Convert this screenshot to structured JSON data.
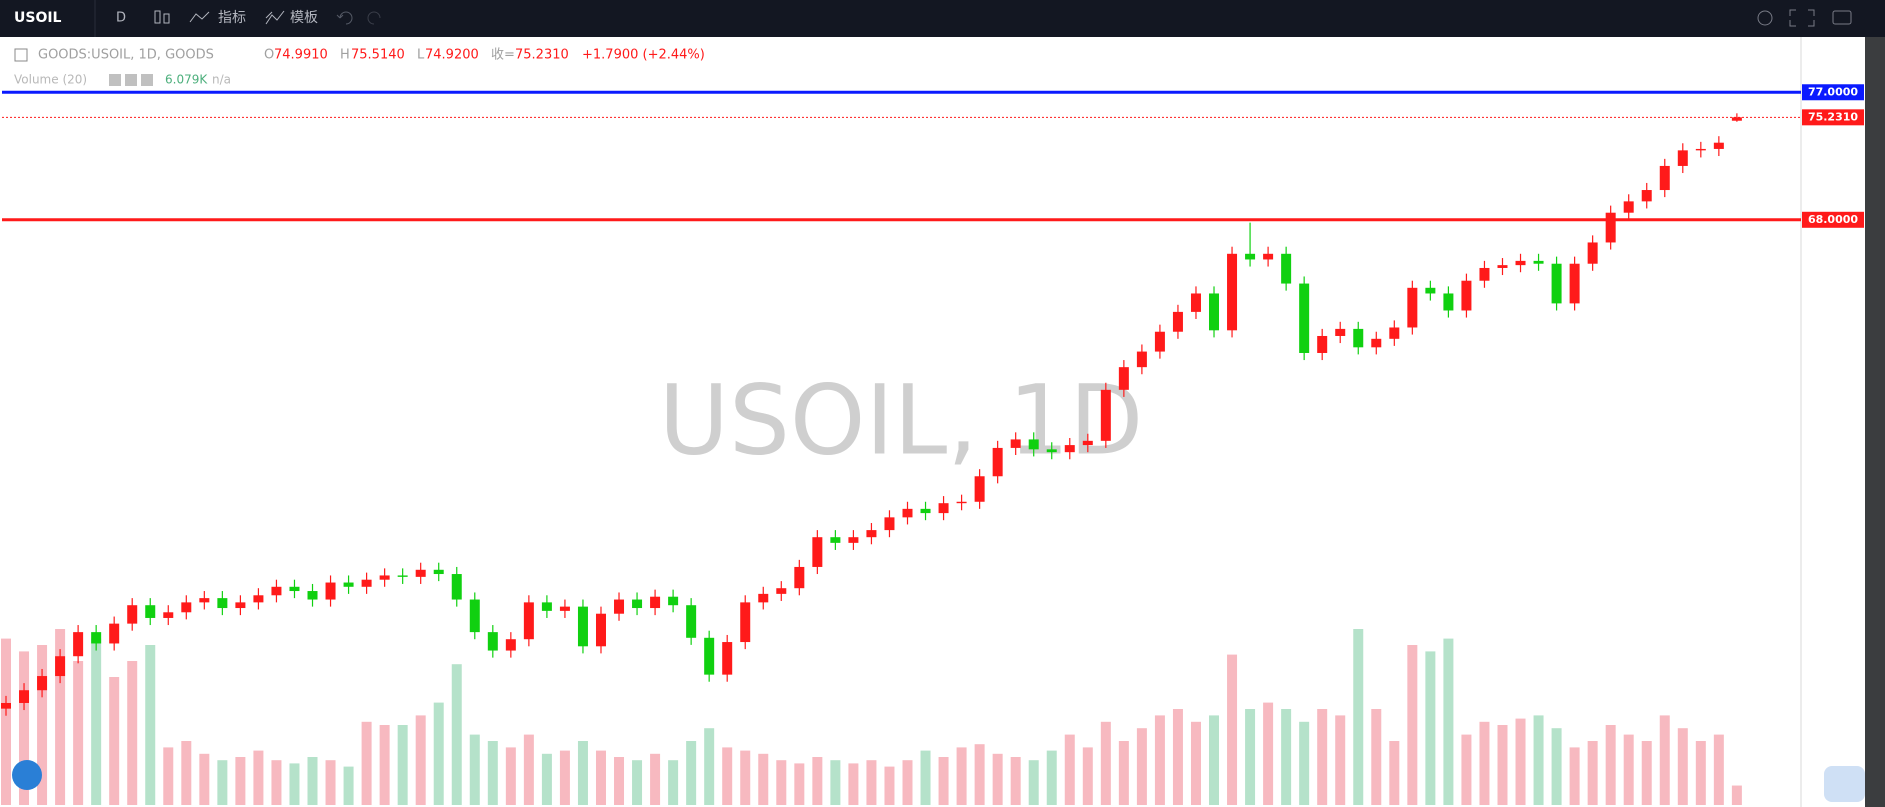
{
  "toolbar": {
    "symbol": "USOIL",
    "interval": "D",
    "indicators": "指标",
    "templates": "模板"
  },
  "chart_data": {
    "type": "candlestick",
    "title": "USOIL, 1D",
    "legend": {
      "symbol": "GOODS:USOIL, 1D, GOODS",
      "o_label": "O",
      "o": "74.9910",
      "h_label": "H",
      "h": "75.5140",
      "l_label": "L",
      "l": "74.9200",
      "c_label": "收=",
      "c": "75.2310",
      "change": "+1.7900 (+2.44%)"
    },
    "up_color": "#ff1a1a",
    "down_color": "#10d010",
    "open": [
      33.5,
      33.9,
      34.8,
      35.8,
      37.2,
      38.9,
      38.1,
      39.5,
      40.8,
      39.9,
      40.3,
      41.0,
      41.3,
      40.6,
      41.0,
      41.5,
      42.1,
      41.8,
      41.2,
      42.4,
      42.1,
      42.6,
      42.9,
      42.8,
      43.3,
      43.0,
      41.2,
      38.9,
      37.6,
      38.4,
      41.0,
      40.4,
      40.7,
      37.9,
      40.2,
      41.2,
      40.6,
      41.4,
      40.8,
      38.5,
      35.9,
      38.2,
      41.0,
      41.6,
      42.0,
      43.5,
      45.6,
      45.2,
      45.6,
      46.1,
      47.0,
      47.6,
      47.3,
      48.0,
      48.1,
      49.9,
      51.9,
      52.5,
      51.8,
      51.6,
      52.1,
      52.4,
      56.0,
      57.6,
      58.7,
      60.1,
      61.5,
      62.8,
      60.2,
      65.6,
      65.2,
      65.6,
      63.5,
      58.6,
      59.8,
      60.3,
      59.0,
      59.6,
      60.4,
      63.2,
      62.8,
      61.6,
      63.7,
      64.6,
      64.8,
      65.1,
      64.9,
      62.1,
      64.9,
      66.4,
      68.5,
      69.3,
      70.1,
      71.8,
      72.9,
      73.0,
      74.991
    ],
    "high": [
      34.4,
      35.3,
      36.3,
      37.7,
      39.4,
      39.4,
      40.0,
      41.3,
      41.3,
      40.8,
      41.5,
      41.8,
      41.8,
      41.5,
      42.0,
      42.6,
      42.6,
      42.3,
      42.9,
      42.9,
      43.1,
      43.4,
      43.4,
      43.8,
      43.8,
      43.5,
      41.7,
      39.4,
      38.9,
      41.5,
      41.5,
      41.2,
      41.2,
      40.7,
      41.7,
      41.7,
      41.9,
      41.9,
      41.3,
      39.0,
      38.7,
      41.5,
      42.1,
      42.5,
      44.0,
      46.1,
      46.1,
      46.1,
      46.6,
      47.5,
      48.1,
      48.1,
      48.5,
      48.6,
      50.4,
      52.4,
      53.0,
      53.0,
      52.3,
      52.6,
      52.9,
      56.5,
      58.1,
      59.2,
      60.6,
      62.0,
      63.3,
      63.3,
      66.1,
      67.8,
      66.1,
      66.1,
      64.0,
      60.3,
      60.8,
      60.8,
      60.1,
      60.9,
      63.7,
      63.7,
      63.3,
      64.2,
      65.1,
      65.3,
      65.6,
      65.6,
      65.4,
      65.4,
      66.9,
      69.0,
      69.8,
      70.6,
      72.3,
      73.4,
      73.5,
      73.9,
      75.514
    ],
    "low": [
      33.0,
      33.4,
      34.3,
      35.3,
      36.7,
      37.6,
      37.6,
      39.0,
      39.4,
      39.4,
      39.8,
      40.5,
      40.1,
      40.1,
      40.5,
      41.0,
      41.3,
      40.7,
      40.7,
      41.6,
      41.6,
      42.1,
      42.3,
      42.3,
      42.5,
      40.7,
      38.4,
      37.1,
      37.1,
      37.9,
      39.9,
      39.9,
      37.4,
      37.4,
      39.7,
      40.1,
      40.1,
      40.3,
      38.0,
      35.4,
      35.4,
      37.7,
      40.5,
      41.1,
      41.5,
      43.0,
      44.7,
      44.7,
      45.1,
      45.6,
      46.5,
      46.8,
      46.8,
      47.5,
      47.6,
      49.4,
      51.4,
      51.3,
      51.1,
      51.1,
      51.6,
      51.9,
      55.5,
      57.1,
      58.2,
      59.6,
      61.0,
      59.7,
      59.7,
      64.7,
      64.7,
      63.0,
      58.1,
      58.1,
      59.3,
      58.5,
      58.5,
      59.1,
      59.9,
      62.3,
      61.1,
      61.1,
      63.2,
      64.1,
      64.3,
      64.4,
      61.6,
      61.6,
      64.4,
      65.9,
      68.0,
      68.8,
      69.6,
      71.3,
      72.4,
      72.5,
      74.92
    ],
    "close": [
      33.9,
      34.8,
      35.8,
      37.2,
      38.9,
      38.1,
      39.5,
      40.8,
      39.9,
      40.3,
      41.0,
      41.3,
      40.6,
      41.0,
      41.5,
      42.1,
      41.8,
      41.2,
      42.4,
      42.1,
      42.6,
      42.9,
      42.8,
      43.3,
      43.0,
      41.2,
      38.9,
      37.6,
      38.4,
      41.0,
      40.4,
      40.7,
      37.9,
      40.2,
      41.2,
      40.6,
      41.4,
      40.8,
      38.5,
      35.9,
      38.2,
      41.0,
      41.6,
      42.0,
      43.5,
      45.6,
      45.2,
      45.6,
      46.1,
      47.0,
      47.6,
      47.3,
      48.0,
      48.1,
      49.9,
      51.9,
      52.5,
      51.8,
      51.6,
      52.1,
      52.4,
      56.0,
      57.6,
      58.7,
      60.1,
      61.5,
      62.8,
      60.2,
      65.6,
      65.2,
      65.6,
      63.5,
      58.6,
      59.8,
      60.3,
      59.0,
      59.6,
      60.4,
      63.2,
      62.8,
      61.6,
      63.7,
      64.6,
      64.8,
      65.1,
      64.9,
      62.1,
      64.9,
      66.4,
      68.5,
      69.3,
      70.1,
      71.8,
      72.9,
      73.0,
      73.441,
      75.231
    ],
    "volume": {
      "name": "Volume (20)",
      "last": "6.079K",
      "ma": "n/a",
      "up_color": "#f7b9c0",
      "down_color": "#b5e2ca",
      "vlim": [
        0,
        60
      ],
      "values": [
        52,
        48,
        50,
        55,
        45,
        52,
        40,
        45,
        50,
        18,
        20,
        16,
        14,
        15,
        17,
        14,
        13,
        15,
        14,
        12,
        26,
        25,
        25,
        28,
        32,
        44,
        22,
        20,
        18,
        22,
        16,
        17,
        20,
        17,
        15,
        14,
        16,
        14,
        20,
        24,
        18,
        17,
        16,
        14,
        13,
        15,
        14,
        13,
        14,
        12,
        14,
        17,
        15,
        18,
        19,
        16,
        15,
        14,
        17,
        22,
        18,
        26,
        20,
        24,
        28,
        30,
        26,
        28,
        47,
        30,
        32,
        30,
        26,
        30,
        28,
        55,
        30,
        20,
        50,
        48,
        52,
        22,
        26,
        25,
        27,
        28,
        24,
        18,
        20,
        25,
        22,
        20,
        28,
        24,
        20,
        22,
        6.079
      ]
    },
    "ylim": [
      26.7,
      80.9
    ],
    "lines": [
      {
        "value": 77,
        "label": "77.0000",
        "color": "#0a1aff",
        "style": "solid"
      },
      {
        "value": 75.231,
        "label": "75.2310",
        "color": "#ff1a1a",
        "style": "dotted"
      },
      {
        "value": 68,
        "label": "68.0000",
        "color": "#ff1a1a",
        "style": "solid"
      }
    ]
  }
}
